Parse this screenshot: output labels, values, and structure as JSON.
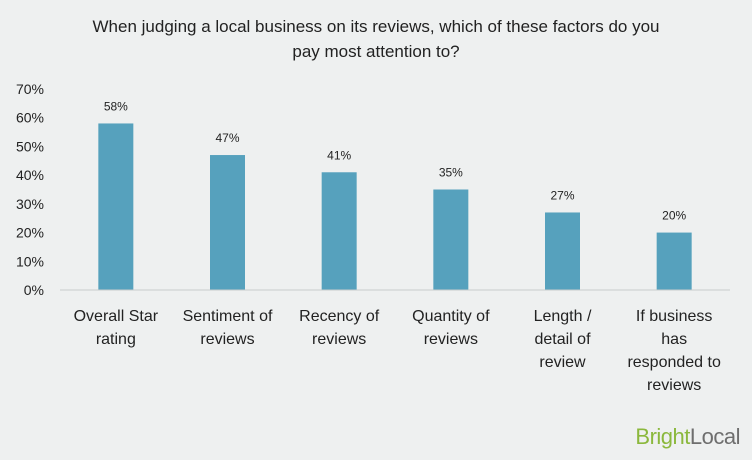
{
  "chart_data": {
    "type": "bar",
    "title_lines": [
      "When judging a local business on its reviews, which of these factors do you",
      "pay most attention to?"
    ],
    "categories": [
      [
        "Overall Star",
        "rating"
      ],
      [
        "Sentiment of",
        "reviews"
      ],
      [
        "Recency of",
        "reviews"
      ],
      [
        "Quantity of",
        "reviews"
      ],
      [
        "Length /",
        "detail of",
        "review"
      ],
      [
        "If business",
        "has",
        "responded to",
        "reviews"
      ]
    ],
    "values": [
      58,
      47,
      41,
      35,
      27,
      20
    ],
    "data_labels": [
      "58%",
      "47%",
      "41%",
      "35%",
      "27%",
      "20%"
    ],
    "yticks": [
      "0%",
      "10%",
      "20%",
      "30%",
      "40%",
      "50%",
      "60%",
      "70%"
    ],
    "ylim": [
      0,
      70
    ],
    "bar_color": "#56a1bd",
    "grid": false
  },
  "brand": {
    "part1": "Bright",
    "part2": "Local"
  }
}
